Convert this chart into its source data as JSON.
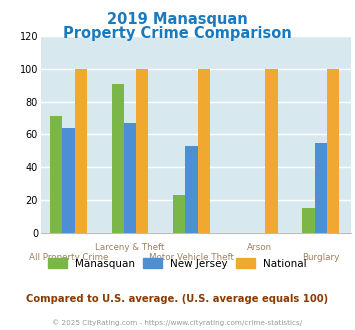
{
  "title_line1": "2019 Manasquan",
  "title_line2": "Property Crime Comparison",
  "title_color": "#1a7abf",
  "manasquan": [
    71,
    91,
    23,
    0,
    15
  ],
  "new_jersey": [
    64,
    67,
    53,
    0,
    55
  ],
  "national": [
    100,
    100,
    100,
    100,
    100
  ],
  "color_manasquan": "#7ab648",
  "color_nj": "#4d8fd4",
  "color_national": "#f0a830",
  "ylim": [
    0,
    120
  ],
  "yticks": [
    0,
    20,
    40,
    60,
    80,
    100,
    120
  ],
  "bg_color": "#d8e8ef",
  "fig_bg": "#ffffff",
  "grid_color": "#ffffff",
  "label_upper": [
    "",
    "Larceny & Theft",
    "",
    "Arson",
    ""
  ],
  "label_lower": [
    "All Property Crime",
    "",
    "Motor Vehicle Theft",
    "",
    "Burglary"
  ],
  "label_color": "#a08060",
  "footer_note": "Compared to U.S. average. (U.S. average equals 100)",
  "footer_color": "#8b3a00",
  "copyright_text": "© 2025 CityRating.com - https://www.cityrating.com/crime-statistics/",
  "copyright_color": "#999999",
  "legend_labels": [
    "Manasquan",
    "New Jersey",
    "National"
  ]
}
